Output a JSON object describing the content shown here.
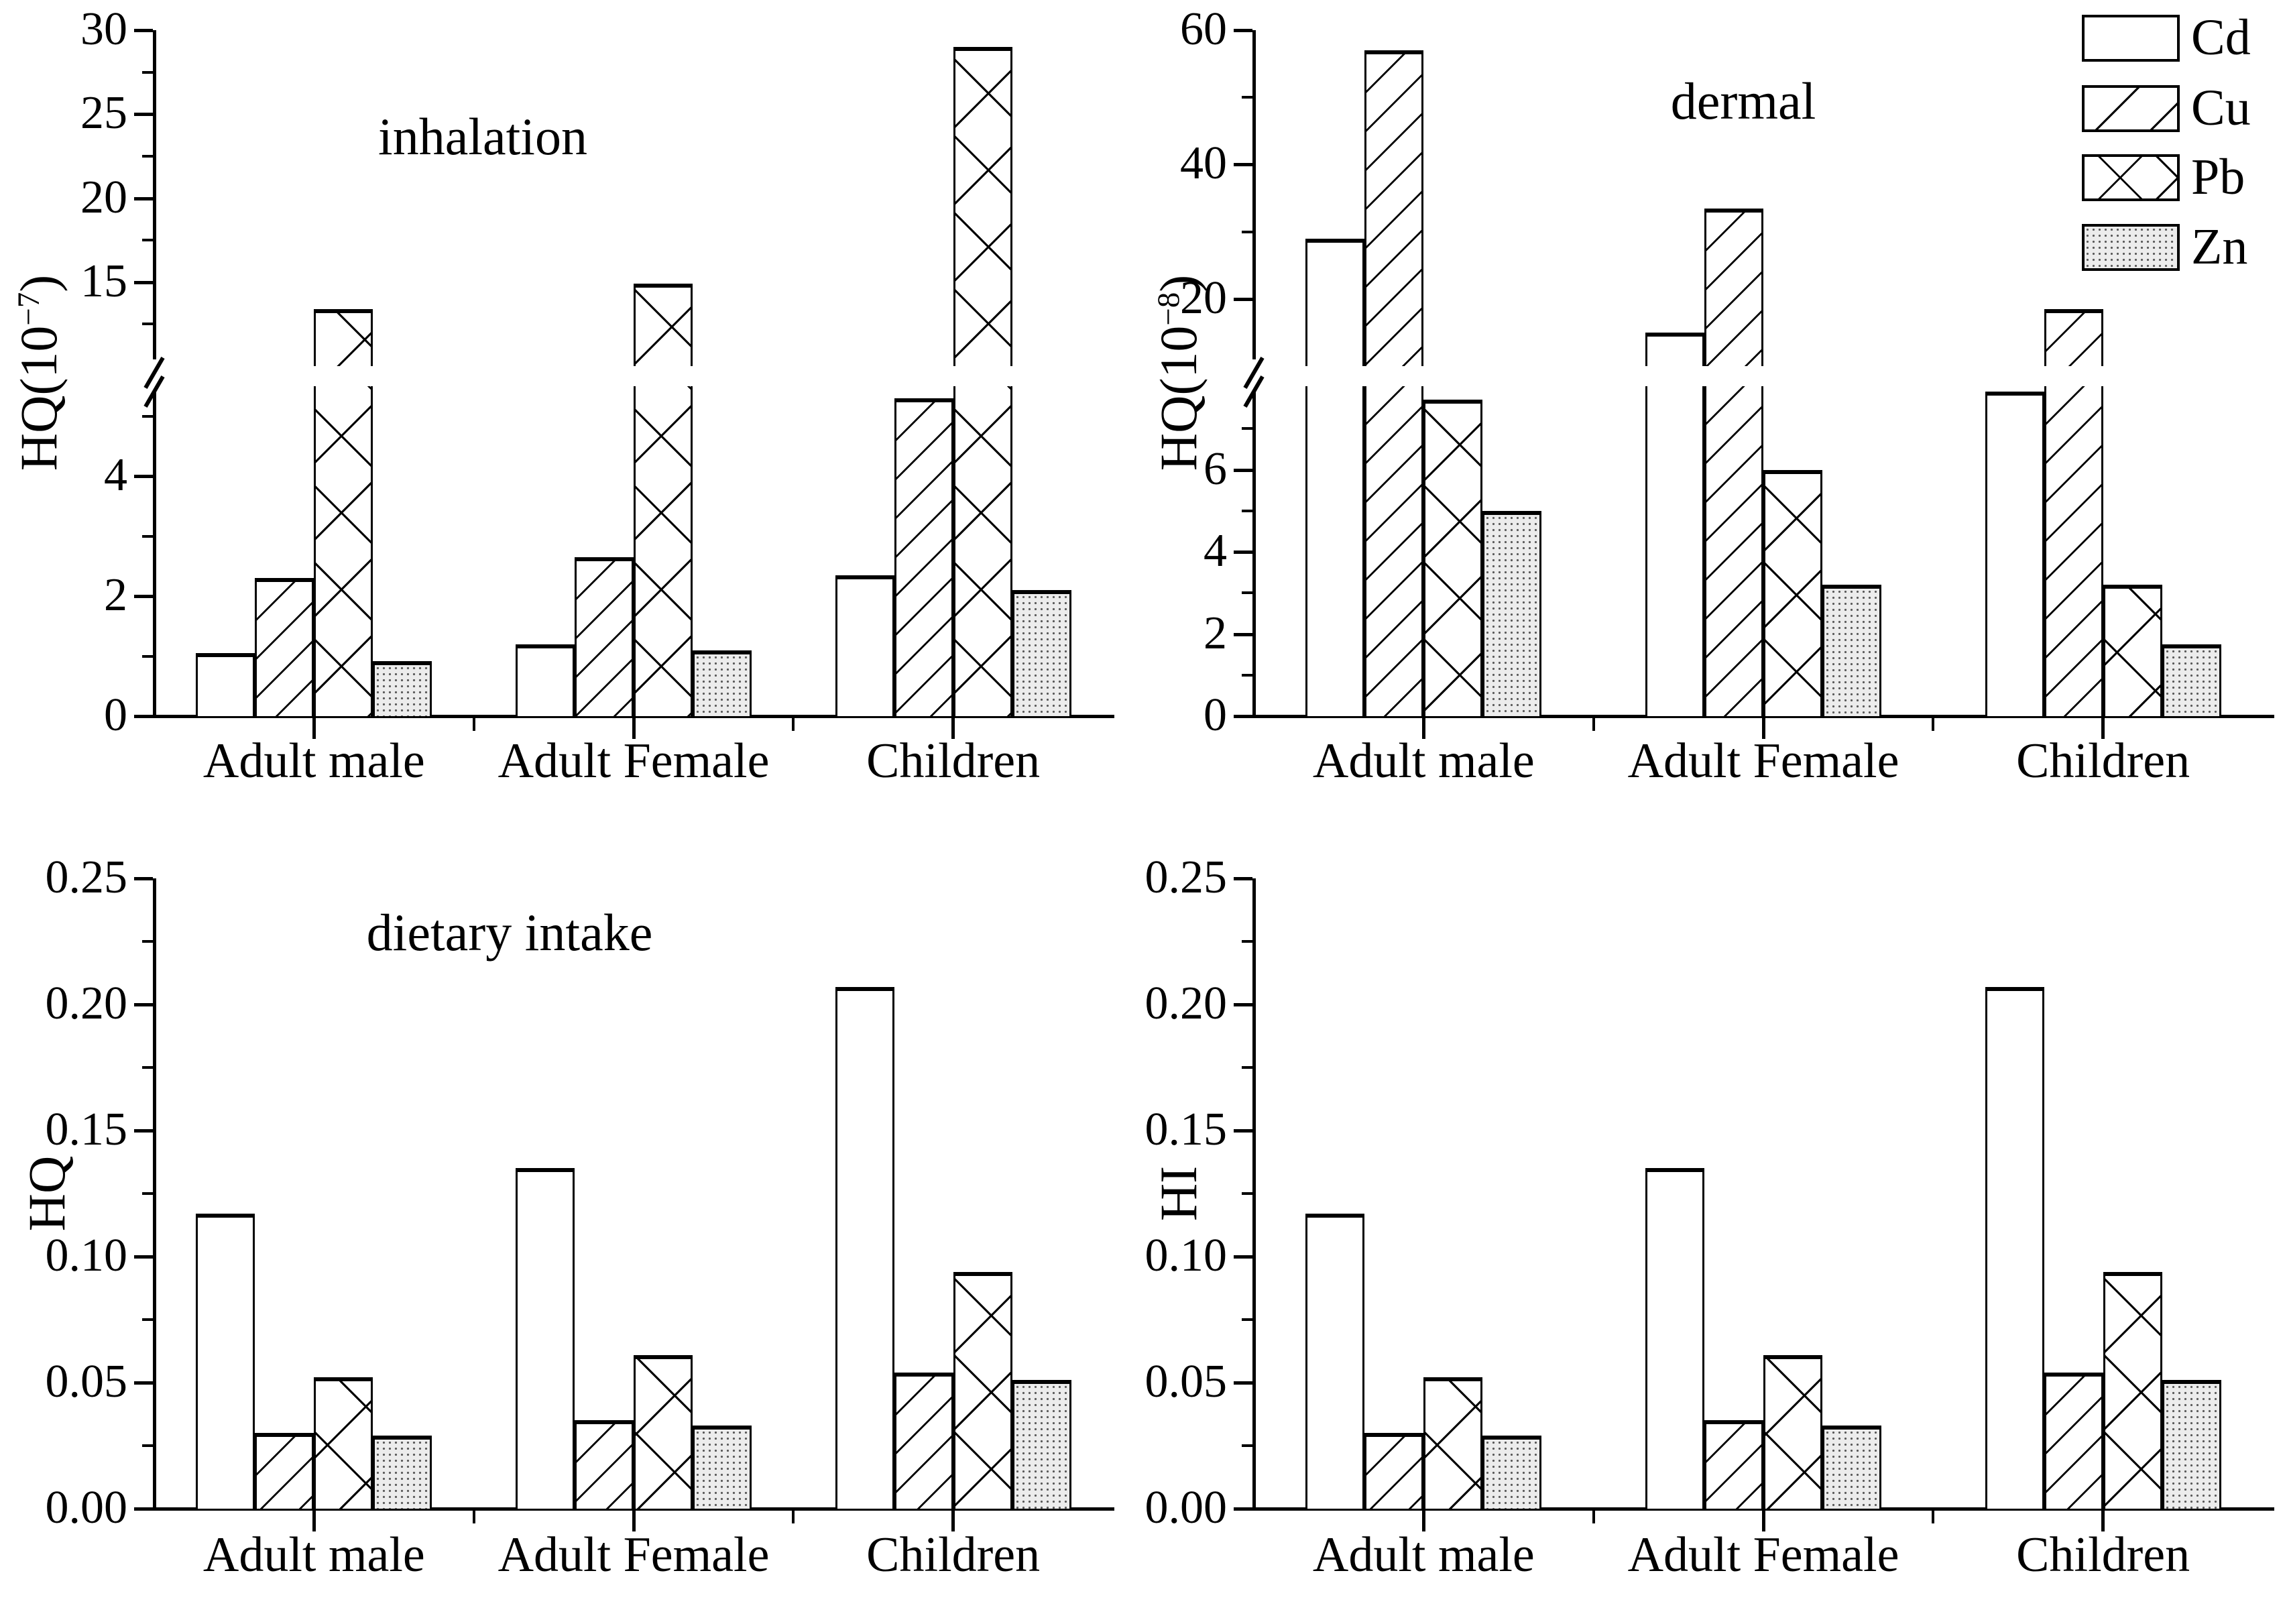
{
  "figure": {
    "background": "#ffffff",
    "ink": "#000000",
    "zn_fill": "#ececec"
  },
  "categories": [
    "Adult male",
    "Adult Female",
    "Children"
  ],
  "legend": [
    {
      "name": "Cd",
      "pattern": "plain"
    },
    {
      "name": "Cu",
      "pattern": "diagonal-hatch"
    },
    {
      "name": "Pb",
      "pattern": "crosshatch"
    },
    {
      "name": "Zn",
      "pattern": "gray-stipple"
    }
  ],
  "chart_data": [
    {
      "type": "bar",
      "title": "inhalation",
      "ylabel_pre": "HQ(10",
      "ylabel_sup": "−7",
      "ylabel_post": ")",
      "xlabel": "",
      "categories": [
        "Adult male",
        "Adult Female",
        "Children"
      ],
      "series": [
        {
          "name": "Cd",
          "values": [
            1.05,
            1.2,
            2.35
          ]
        },
        {
          "name": "Cu",
          "values": [
            2.3,
            2.65,
            5.3
          ]
        },
        {
          "name": "Pb",
          "values": [
            13.4,
            14.9,
            29.0
          ]
        },
        {
          "name": "Zn",
          "values": [
            0.92,
            1.1,
            2.1
          ]
        }
      ],
      "yaxis": {
        "broken": true,
        "segments": [
          {
            "range": [
              0,
              5.5
            ],
            "major_ticks": [
              0,
              2,
              4
            ],
            "major_labels": [
              "0",
              "2",
              "4"
            ],
            "minor_ticks": [
              1,
              3,
              5
            ]
          },
          {
            "range": [
              10,
              30
            ],
            "major_ticks": [
              15,
              20,
              25,
              30
            ],
            "major_labels": [
              "15",
              "20",
              "25",
              "30"
            ],
            "minor_ticks": [
              12.5,
              17.5,
              22.5,
              27.5
            ]
          }
        ]
      }
    },
    {
      "type": "bar",
      "title": "dermal",
      "ylabel_pre": "HQ(10",
      "ylabel_sup": "−8",
      "ylabel_post": ")",
      "xlabel": "",
      "categories": [
        "Adult male",
        "Adult Female",
        "Children"
      ],
      "series": [
        {
          "name": "Cd",
          "values": [
            29.0,
            15.0,
            7.9
          ]
        },
        {
          "name": "Cu",
          "values": [
            57.0,
            33.5,
            18.5
          ]
        },
        {
          "name": "Pb",
          "values": [
            7.7,
            6.0,
            3.2
          ]
        },
        {
          "name": "Zn",
          "values": [
            5.0,
            3.2,
            1.75
          ]
        }
      ],
      "yaxis": {
        "broken": true,
        "segments": [
          {
            "range": [
              0,
              8
            ],
            "major_ticks": [
              0,
              2,
              4,
              6
            ],
            "major_labels": [
              "0",
              "2",
              "4",
              "6"
            ],
            "minor_ticks": [
              1,
              3,
              5,
              7
            ]
          },
          {
            "range": [
              10,
              60
            ],
            "major_ticks": [
              20,
              40,
              60
            ],
            "major_labels": [
              "20",
              "40",
              "60"
            ],
            "minor_ticks": [
              30,
              50
            ]
          }
        ]
      }
    },
    {
      "type": "bar",
      "title": "dietary intake",
      "ylabel_pre": "HQ",
      "ylabel_sup": "",
      "ylabel_post": "",
      "xlabel": "",
      "categories": [
        "Adult male",
        "Adult Female",
        "Children"
      ],
      "series": [
        {
          "name": "Cd",
          "values": [
            0.117,
            0.135,
            0.207
          ]
        },
        {
          "name": "Cu",
          "values": [
            0.03,
            0.035,
            0.054
          ]
        },
        {
          "name": "Pb",
          "values": [
            0.052,
            0.061,
            0.094
          ]
        },
        {
          "name": "Zn",
          "values": [
            0.029,
            0.033,
            0.051
          ]
        }
      ],
      "yaxis": {
        "broken": false,
        "segments": [
          {
            "range": [
              0,
              0.25
            ],
            "major_ticks": [
              0,
              0.05,
              0.1,
              0.15,
              0.2,
              0.25
            ],
            "major_labels": [
              "0.00",
              "0.05",
              "0.10",
              "0.15",
              "0.20",
              "0.25"
            ],
            "minor_ticks": [
              0.025,
              0.075,
              0.125,
              0.175,
              0.225
            ]
          }
        ]
      }
    },
    {
      "type": "bar",
      "title": "",
      "ylabel_pre": "HI",
      "ylabel_sup": "",
      "ylabel_post": "",
      "xlabel": "",
      "categories": [
        "Adult male",
        "Adult Female",
        "Children"
      ],
      "series": [
        {
          "name": "Cd",
          "values": [
            0.117,
            0.135,
            0.207
          ]
        },
        {
          "name": "Cu",
          "values": [
            0.03,
            0.035,
            0.054
          ]
        },
        {
          "name": "Pb",
          "values": [
            0.052,
            0.061,
            0.094
          ]
        },
        {
          "name": "Zn",
          "values": [
            0.029,
            0.033,
            0.051
          ]
        }
      ],
      "yaxis": {
        "broken": false,
        "segments": [
          {
            "range": [
              0,
              0.25
            ],
            "major_ticks": [
              0,
              0.05,
              0.1,
              0.15,
              0.2,
              0.25
            ],
            "major_labels": [
              "0.00",
              "0.05",
              "0.10",
              "0.15",
              "0.20",
              "0.25"
            ],
            "minor_ticks": [
              0.025,
              0.075,
              0.125,
              0.175,
              0.225
            ]
          }
        ]
      }
    }
  ]
}
